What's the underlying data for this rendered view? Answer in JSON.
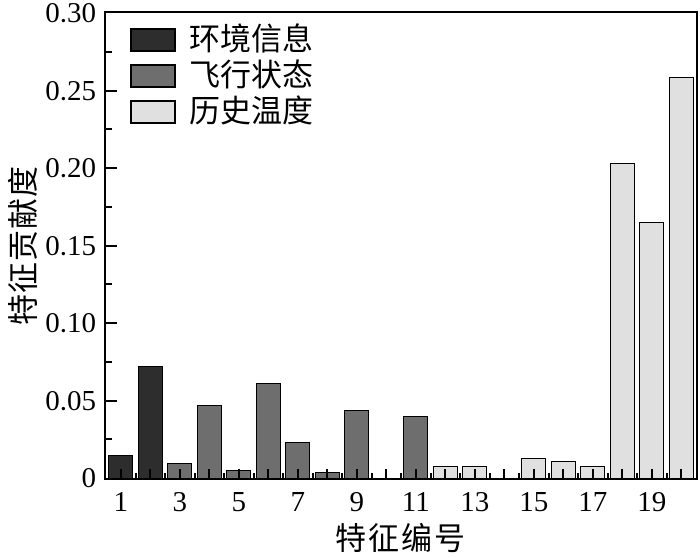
{
  "chart_data": {
    "type": "bar",
    "title": "",
    "xlabel": "特征编号",
    "ylabel": "特征贡献度",
    "ylim": [
      0,
      0.3
    ],
    "xlim_slots": 20,
    "grid": false,
    "legend_position": "top-left",
    "yticks_major": [
      0,
      0.05,
      0.1,
      0.15,
      0.2,
      0.25,
      0.3
    ],
    "ytick_labels": [
      "0",
      "0.05",
      "0.10",
      "0.15",
      "0.20",
      "0.25",
      "0.30"
    ],
    "yticks_minor": [
      0.025,
      0.075,
      0.125,
      0.175,
      0.225,
      0.275
    ],
    "x": [
      1,
      2,
      3,
      4,
      5,
      6,
      7,
      8,
      9,
      10,
      11,
      12,
      13,
      14,
      15,
      16,
      17,
      18,
      19,
      20
    ],
    "xticks_labeled": [
      1,
      3,
      5,
      7,
      9,
      11,
      13,
      15,
      17,
      19
    ],
    "series": [
      {
        "name": "环境信息",
        "color": "#2d2d2d",
        "x": [
          1,
          2
        ],
        "values": [
          0.015,
          0.072
        ]
      },
      {
        "name": "飞行状态",
        "color": "#6e6e6e",
        "x": [
          3,
          4,
          5,
          6,
          7,
          8,
          9,
          10,
          11
        ],
        "values": [
          0.01,
          0.047,
          0.005,
          0.061,
          0.023,
          0.004,
          0.044,
          0,
          0.04
        ]
      },
      {
        "name": "历史温度",
        "color": "#e0e0e0",
        "x": [
          12,
          13,
          14,
          15,
          16,
          17,
          18,
          19,
          20
        ],
        "values": [
          0.008,
          0.008,
          0,
          0.013,
          0.011,
          0.008,
          0.203,
          0.165,
          0.259
        ]
      }
    ],
    "colors": {
      "axis": "#000000",
      "bar_border": "#000000",
      "background": "#ffffff"
    }
  }
}
